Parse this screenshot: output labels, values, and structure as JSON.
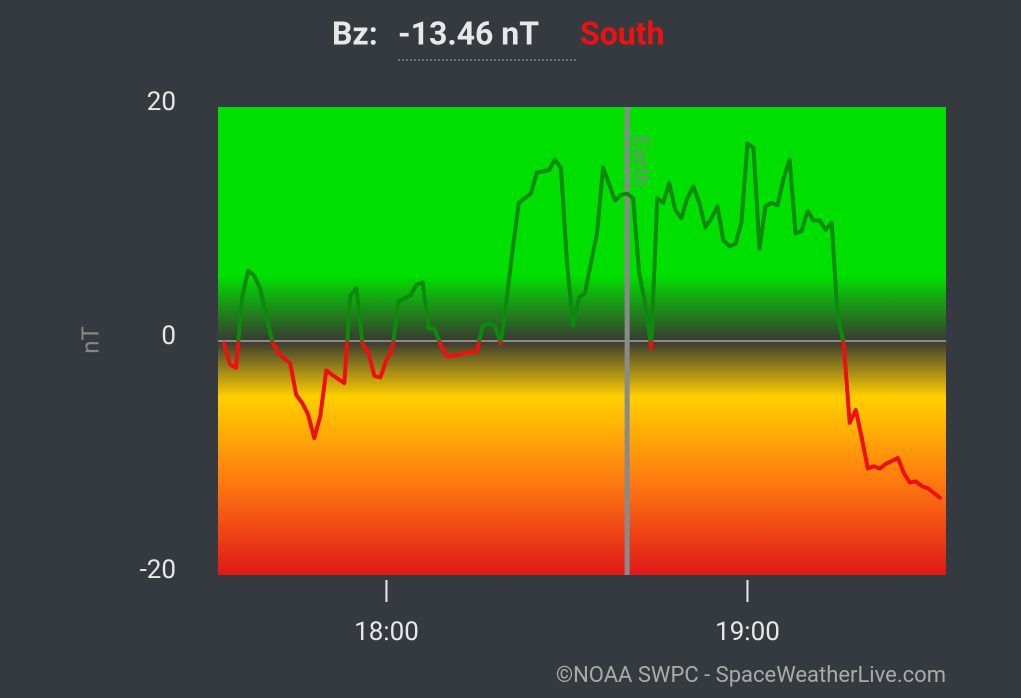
{
  "chart_data": {
    "type": "line",
    "title": {
      "label": "Bz:",
      "value": "-13.46 nT",
      "direction": "South"
    },
    "ylabel": "nT",
    "x": [
      "17:33",
      "17:34",
      "17:35",
      "17:36",
      "17:37",
      "17:38",
      "17:39",
      "17:41",
      "17:42",
      "17:43",
      "17:44",
      "17:45",
      "17:46",
      "17:47",
      "17:48",
      "17:49",
      "17:50",
      "17:51",
      "17:53",
      "17:54",
      "17:55",
      "17:56",
      "17:57",
      "17:58",
      "17:59",
      "18:00",
      "18:01",
      "18:02",
      "18:04",
      "18:05",
      "18:06",
      "18:07",
      "18:08",
      "18:09",
      "18:10",
      "18:12",
      "18:13",
      "18:15",
      "18:16",
      "18:17",
      "18:18",
      "18:19",
      "18:20",
      "18:21",
      "18:22",
      "18:23",
      "18:24",
      "18:25",
      "18:27",
      "18:28",
      "18:29",
      "18:30",
      "18:31",
      "18:32",
      "18:33",
      "18:34",
      "18:35",
      "18:36",
      "18:38",
      "18:39",
      "18:40",
      "18:41",
      "18:42",
      "18:43",
      "18:44",
      "18:45",
      "18:46",
      "18:47",
      "18:48",
      "18:49",
      "18:50",
      "18:51",
      "18:52",
      "18:53",
      "18:54",
      "18:55",
      "18:56",
      "18:57",
      "18:58",
      "18:59",
      "19:00",
      "19:01",
      "19:02",
      "19:03",
      "19:04",
      "19:05",
      "19:06",
      "19:07",
      "19:08",
      "19:09",
      "19:10",
      "19:11",
      "19:12",
      "19:13",
      "19:14",
      "19:15",
      "19:16",
      "19:17",
      "19:18",
      "19:19",
      "19:20",
      "19:21",
      "19:22",
      "19:23",
      "19:25",
      "19:26",
      "19:27",
      "19:28",
      "19:29",
      "19:30",
      "19:32"
    ],
    "series": [
      {
        "name": "Bz",
        "values": [
          -0.2,
          -2,
          -2.3,
          3.7,
          6.0,
          5.6,
          4.5,
          0,
          -1,
          -1.5,
          -1.9,
          -4.6,
          -5.3,
          -6.3,
          -8.3,
          -6.4,
          -2.5,
          -2.9,
          -3.6,
          3.9,
          4.5,
          -0.2,
          -1,
          -3,
          -3.1,
          -1.6,
          -0.6,
          3.4,
          3.9,
          4.8,
          5.0,
          1.1,
          1.0,
          -0.3,
          -1.3,
          -1.2,
          -1,
          -0.9,
          1.3,
          1.5,
          1.3,
          -0.2,
          3.7,
          7.9,
          11.8,
          12.2,
          12.6,
          14.4,
          14.6,
          15.5,
          14.8,
          6.7,
          1.3,
          3.7,
          4.1,
          6.7,
          9.2,
          14.8,
          12.0,
          12.5,
          12.6,
          12.2,
          5.8,
          3.2,
          -0.6,
          12.2,
          11.8,
          13.5,
          11.2,
          10.5,
          12.2,
          13.2,
          11.8,
          9.7,
          10.5,
          11.5,
          8.6,
          8.1,
          8.3,
          10.1,
          16.9,
          16.5,
          7.9,
          11.5,
          11.8,
          11.6,
          13.9,
          15.5,
          9.2,
          9.4,
          11.1,
          10.3,
          10.3,
          9.5,
          10.1,
          2.0,
          -0.2,
          -7.0,
          -5.9,
          -8.3,
          -10.9,
          -10.7,
          -10.9,
          -10.5,
          -10,
          -11.3,
          -12.1,
          -12,
          -12.4,
          -12.6,
          -13.4
        ]
      }
    ],
    "color_above": "#0d8a0d",
    "color_below": "#ee1010",
    "xlim": [
      "17:32",
      "19:33"
    ],
    "xticks": [
      "18:00",
      "19:00"
    ],
    "ylim": [
      -20,
      20
    ],
    "yticks": [
      -20,
      0,
      20
    ],
    "zero_line": true,
    "annotations": [
      {
        "x": "18:40",
        "text": "Earth"
      }
    ],
    "credit": "©NOAA SWPC - SpaceWeatherLive.com"
  }
}
